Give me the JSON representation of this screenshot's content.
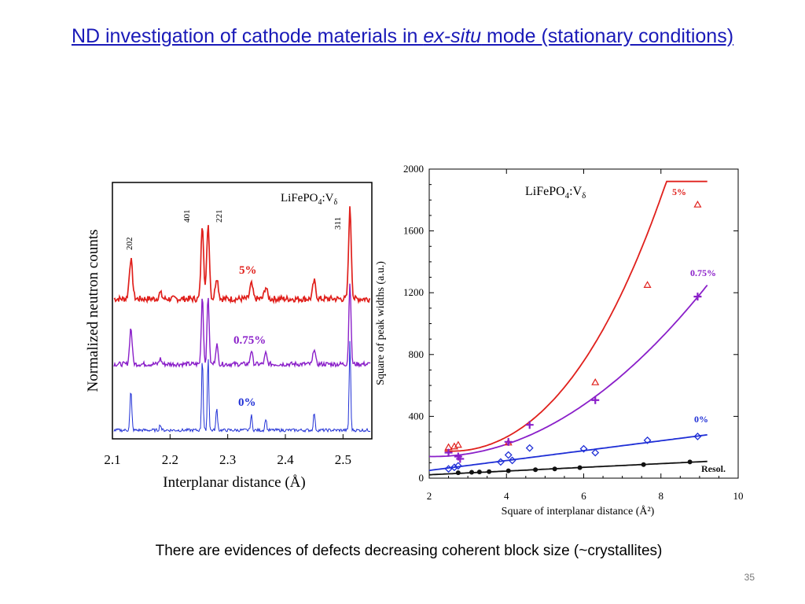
{
  "slide": {
    "title_part1": "ND investigation of cathode materials in ",
    "title_italic": "ex-situ",
    "title_part2": " mode (stationary conditions)",
    "caption": "There are evidences of defects decreasing coherent block size (~crystallites)",
    "slide_number": "35"
  },
  "chart_data": [
    {
      "type": "line",
      "title": "",
      "inset_label_main": "LiFePO",
      "inset_label_sub1": "4",
      "inset_label_mid": ":V",
      "inset_label_sub2": "δ",
      "xlabel": "Interplanar distance (Å)",
      "ylabel": "Normalized neutron counts",
      "xlim": [
        2.1,
        2.55
      ],
      "xticks": [
        2.1,
        2.2,
        2.3,
        2.4,
        2.5
      ],
      "xtick_labels": [
        "2.1",
        "2.2",
        "2.3",
        "2.4",
        "2.5"
      ],
      "y_ticks_shown": false,
      "peak_labels": [
        "202",
        "401",
        "221",
        "311"
      ],
      "series": [
        {
          "name": "5%",
          "color": "#e0201c"
        },
        {
          "name": "0.75%",
          "color": "#8a1fc9"
        },
        {
          "name": "0%",
          "color": "#1f2fd6"
        }
      ]
    },
    {
      "type": "scatter",
      "title": "",
      "inset_label_main": "LiFePO",
      "inset_label_sub1": "4",
      "inset_label_mid": ":V",
      "inset_label_sub2": "δ",
      "xlabel": "Square of interplanar distance (Å²)",
      "ylabel": "Square of peak widths (a.u.)",
      "xlim": [
        2,
        10
      ],
      "ylim": [
        0,
        2000
      ],
      "xticks": [
        2,
        4,
        6,
        8,
        10
      ],
      "yticks": [
        0,
        400,
        800,
        1200,
        1600,
        2000
      ],
      "series": [
        {
          "name": "5%",
          "marker": "triangle",
          "color": "#e0201c",
          "x": [
            2.5,
            2.65,
            2.75,
            4.05,
            6.3,
            7.65,
            8.95
          ],
          "y": [
            200,
            205,
            215,
            230,
            620,
            1250,
            1770
          ]
        },
        {
          "name": "0.75%",
          "marker": "plus",
          "color": "#8a1fc9",
          "x": [
            2.5,
            2.75,
            2.8,
            4.05,
            4.6,
            6.3,
            8.95
          ],
          "y": [
            165,
            140,
            125,
            235,
            345,
            505,
            1175
          ]
        },
        {
          "name": "0%",
          "marker": "diamond",
          "color": "#1f2fd6",
          "x": [
            2.5,
            2.65,
            2.75,
            3.85,
            4.05,
            4.15,
            4.6,
            6.0,
            6.3,
            7.65,
            8.95
          ],
          "y": [
            60,
            70,
            80,
            105,
            150,
            115,
            195,
            190,
            165,
            245,
            270
          ]
        },
        {
          "name": "Resol.",
          "marker": "circle",
          "color": "#111111",
          "x": [
            2.75,
            3.1,
            3.3,
            3.55,
            4.05,
            4.75,
            5.25,
            5.9,
            7.55,
            8.75
          ],
          "y": [
            35,
            38,
            40,
            42,
            48,
            55,
            60,
            68,
            88,
            105
          ]
        }
      ]
    }
  ]
}
